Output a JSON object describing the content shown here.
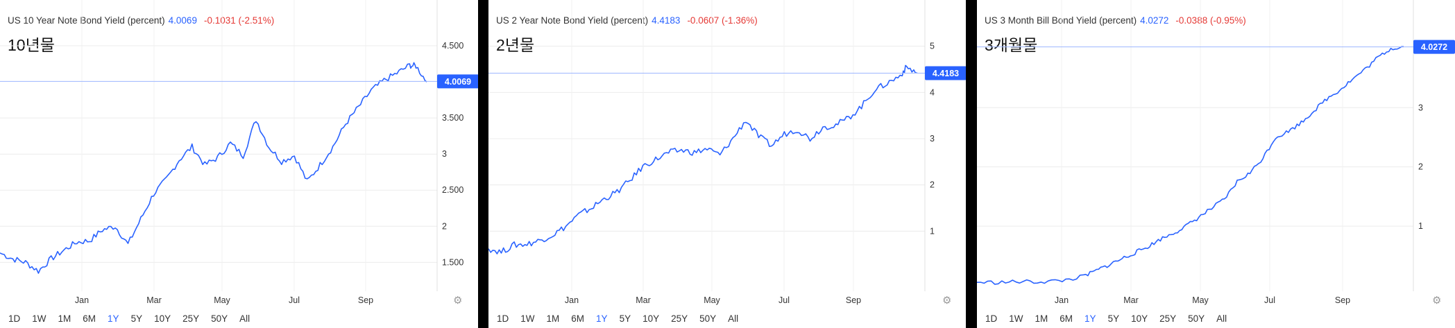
{
  "ranges": [
    "1D",
    "1W",
    "1M",
    "6M",
    "1Y",
    "5Y",
    "10Y",
    "25Y",
    "50Y",
    "All"
  ],
  "active_range": "1Y",
  "panels": [
    {
      "header": "US 10 Year Note Bond Yield (percent)",
      "price": "4.0069",
      "change": "-0.1031 (-2.51%)",
      "title": "10년물",
      "badge": "4.0069"
    },
    {
      "header": "US 2 Year Note Bond Yield (percent)",
      "price": "4.4183",
      "change": "-0.0607 (-1.36%)",
      "title": "2년물",
      "badge": "4.4183"
    },
    {
      "header": "US 3 Month Bill Bond Yield (percent)",
      "price": "4.0272",
      "change": "-0.0388 (-0.95%)",
      "title": "3개월물",
      "badge": "4.0272"
    }
  ],
  "chart_data": [
    {
      "type": "line",
      "title": "US 10 Year Note Bond Yield (percent)",
      "series_color": "#2962ff",
      "x_ticks": [
        "Jan",
        "Mar",
        "May",
        "Jul",
        "Sep"
      ],
      "y_ticks": [
        "4.500",
        "3.500",
        "3",
        "2.500",
        "2",
        "1.500"
      ],
      "y_tick_values": [
        4.5,
        3.5,
        3,
        2.5,
        2,
        1.5
      ],
      "ylim": [
        1.1,
        4.75
      ],
      "last_value": 4.0069,
      "x": [
        0,
        0.03,
        0.06,
        0.09,
        0.12,
        0.15,
        0.18,
        0.21,
        0.24,
        0.27,
        0.3,
        0.33,
        0.36,
        0.39,
        0.42,
        0.45,
        0.48,
        0.51,
        0.54,
        0.57,
        0.6,
        0.63,
        0.66,
        0.69,
        0.72,
        0.75,
        0.78,
        0.81,
        0.84,
        0.87,
        0.9,
        0.93,
        0.96,
        0.975,
        1.0
      ],
      "y": [
        1.63,
        1.55,
        1.5,
        1.38,
        1.55,
        1.67,
        1.78,
        1.8,
        1.95,
        2.0,
        1.75,
        2.1,
        2.45,
        2.65,
        2.92,
        3.1,
        2.85,
        2.95,
        3.15,
        2.98,
        3.48,
        3.1,
        2.9,
        2.98,
        2.62,
        2.85,
        3.1,
        3.42,
        3.65,
        3.88,
        4.02,
        4.12,
        4.23,
        4.22,
        4.0
      ]
    },
    {
      "type": "line",
      "title": "US 2 Year Note Bond Yield (percent)",
      "series_color": "#2962ff",
      "x_ticks": [
        "Jan",
        "Mar",
        "May",
        "Jul",
        "Sep"
      ],
      "y_ticks": [
        "5",
        "4",
        "3",
        "2",
        "1"
      ],
      "y_tick_values": [
        5,
        4,
        3,
        2,
        1
      ],
      "ylim": [
        -0.3,
        5.4
      ],
      "last_value": 4.4183,
      "x": [
        0,
        0.03,
        0.06,
        0.09,
        0.12,
        0.15,
        0.18,
        0.21,
        0.24,
        0.27,
        0.3,
        0.33,
        0.36,
        0.39,
        0.42,
        0.45,
        0.48,
        0.51,
        0.54,
        0.57,
        0.6,
        0.63,
        0.66,
        0.69,
        0.72,
        0.75,
        0.78,
        0.81,
        0.84,
        0.87,
        0.9,
        0.93,
        0.96,
        0.975,
        1.0
      ],
      "y": [
        0.62,
        0.55,
        0.7,
        0.72,
        0.8,
        0.92,
        1.1,
        1.35,
        1.5,
        1.7,
        1.85,
        2.1,
        2.4,
        2.55,
        2.7,
        2.75,
        2.7,
        2.78,
        2.65,
        3.0,
        3.4,
        3.05,
        2.85,
        3.1,
        3.2,
        3.0,
        3.25,
        3.3,
        3.45,
        3.7,
        4.05,
        4.2,
        4.36,
        4.55,
        4.42
      ]
    },
    {
      "type": "line",
      "title": "US 3 Month Bill Bond Yield (percent)",
      "series_color": "#2962ff",
      "x_ticks": [
        "Jan",
        "Mar",
        "May",
        "Jul",
        "Sep"
      ],
      "y_ticks": [
        "3",
        "2",
        "1"
      ],
      "y_tick_values": [
        3,
        2,
        1
      ],
      "ylim": [
        -0.1,
        4.35
      ],
      "last_value": 4.0272,
      "x": [
        0,
        0.05,
        0.1,
        0.15,
        0.2,
        0.25,
        0.28,
        0.31,
        0.34,
        0.37,
        0.4,
        0.43,
        0.46,
        0.49,
        0.52,
        0.55,
        0.58,
        0.61,
        0.64,
        0.67,
        0.7,
        0.73,
        0.76,
        0.79,
        0.82,
        0.85,
        0.88,
        0.91,
        0.94,
        0.97,
        1.0
      ],
      "y": [
        0.05,
        0.05,
        0.06,
        0.06,
        0.08,
        0.15,
        0.25,
        0.35,
        0.45,
        0.55,
        0.65,
        0.78,
        0.88,
        1.0,
        1.15,
        1.3,
        1.45,
        1.75,
        1.9,
        2.15,
        2.5,
        2.6,
        2.75,
        2.95,
        3.15,
        3.3,
        3.48,
        3.65,
        3.85,
        4.0,
        4.03
      ]
    }
  ]
}
